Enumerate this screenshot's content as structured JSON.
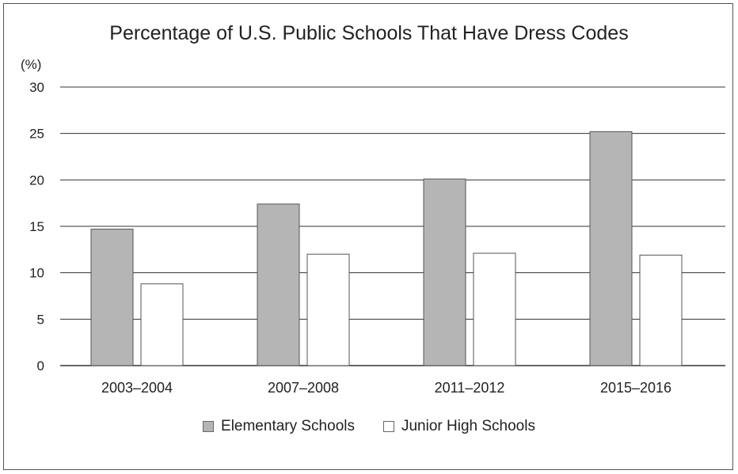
{
  "chart_data": {
    "type": "bar",
    "title": "Percentage of U.S. Public Schools That Have Dress Codes",
    "ylabel": "(%)",
    "xlabel": "",
    "categories": [
      "2003–2004",
      "2007–2008",
      "2011–2012",
      "2015–2016"
    ],
    "series": [
      {
        "name": "Elementary Schools",
        "values": [
          14.7,
          17.4,
          20.1,
          25.2
        ],
        "color": "#b5b5b5"
      },
      {
        "name": "Junior High Schools",
        "values": [
          8.8,
          12.0,
          12.1,
          11.9
        ],
        "color": "#ffffff"
      }
    ],
    "ylim": [
      0,
      30
    ],
    "yticks": [
      0,
      5,
      10,
      15,
      20,
      25,
      30
    ],
    "grid": true,
    "legend_position": "bottom"
  }
}
